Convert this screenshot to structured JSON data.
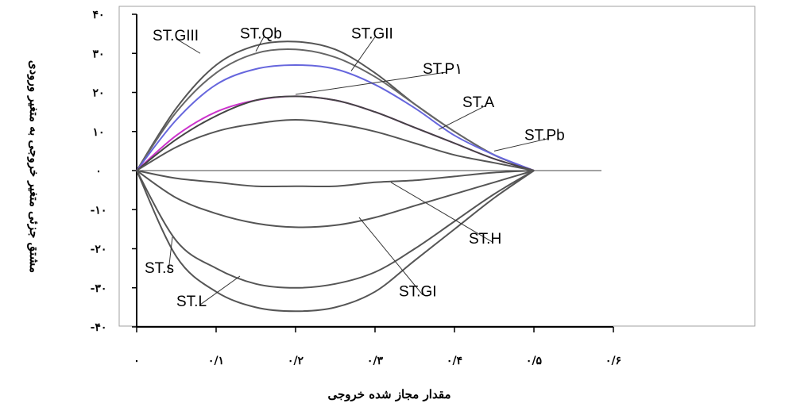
{
  "chart_data": {
    "type": "line",
    "xlabel": "مقدار مجاز شده خروجی",
    "ylabel": "مشتق جزئی متغیر خروجی به متغیر ورودی",
    "xlim": [
      0,
      0.6
    ],
    "ylim": [
      -40,
      40
    ],
    "x_ticks": [
      0,
      0.1,
      0.2,
      0.3,
      0.4,
      0.5,
      0.6
    ],
    "x_tick_labels": [
      "۰",
      "۰/۱",
      "۰/۲",
      "۰/۳",
      "۰/۴",
      "۰/۵",
      "۰/۶"
    ],
    "y_ticks": [
      40,
      30,
      20,
      10,
      0,
      -10,
      -20,
      -30,
      -40
    ],
    "y_tick_labels": [
      "۴۰",
      "۳۰",
      "۲۰",
      "۱۰",
      "۰",
      "-۱۰",
      "-۲۰",
      "-۳۰",
      "-۴۰"
    ],
    "grid": false,
    "x": [
      0,
      0.05,
      0.1,
      0.15,
      0.2,
      0.25,
      0.3,
      0.35,
      0.4,
      0.45,
      0.5
    ],
    "series": [
      {
        "name": "ST.GIII",
        "color": "#555555",
        "values": [
          0,
          16,
          27,
          32,
          33,
          31,
          25,
          17,
          10,
          4,
          0
        ]
      },
      {
        "name": "ST.Qb",
        "color": "#666666",
        "values": [
          0,
          15,
          25,
          30,
          31,
          29,
          24,
          17,
          10,
          4,
          0
        ]
      },
      {
        "name": "ST.GII",
        "color": "#6666dd",
        "values": [
          0,
          13,
          22,
          26,
          27,
          26,
          22,
          16,
          9,
          4,
          0
        ]
      },
      {
        "name": "ST.P۱",
        "color": "#cc33cc",
        "values": [
          0,
          9,
          15,
          18,
          19,
          18,
          15,
          11,
          7,
          3,
          0
        ]
      },
      {
        "name": "ST.A",
        "color": "#444444",
        "values": [
          0,
          8,
          14,
          18,
          19,
          18,
          15,
          11,
          7,
          3,
          0
        ]
      },
      {
        "name": "ST.Pb",
        "color": "#555555",
        "values": [
          0,
          6,
          10,
          12,
          13,
          12,
          10,
          7,
          4,
          2,
          0
        ]
      },
      {
        "name": "ST.H",
        "color": "#555555",
        "values": [
          0,
          -2,
          -3,
          -4,
          -4,
          -4,
          -3,
          -2.5,
          -1.5,
          -0.5,
          0
        ]
      },
      {
        "name": "ST.GI",
        "color": "#555555",
        "values": [
          0,
          -7,
          -11,
          -13.5,
          -14.5,
          -14,
          -12,
          -9,
          -6,
          -3,
          0
        ]
      },
      {
        "name": "ST.s",
        "color": "#555555",
        "values": [
          0,
          -18,
          -25,
          -29,
          -30,
          -29,
          -26,
          -20,
          -13,
          -6,
          0
        ]
      },
      {
        "name": "ST.L",
        "color": "#555555",
        "values": [
          0,
          -22,
          -31,
          -35,
          -36,
          -35,
          -31,
          -23,
          -15,
          -7,
          0
        ]
      }
    ],
    "annotations": [
      {
        "text": "ST.GIII",
        "x": 0.02,
        "y": 34.5,
        "ax": 0.08,
        "ay": 30
      },
      {
        "text": "ST.Qb",
        "x": 0.13,
        "y": 35,
        "ax": 0.15,
        "ay": 30.5
      },
      {
        "text": "ST.GII",
        "x": 0.27,
        "y": 35,
        "ax": 0.27,
        "ay": 25.5
      },
      {
        "text": "ST.P۱",
        "x": 0.36,
        "y": 26,
        "ax": 0.2,
        "ay": 19.5
      },
      {
        "text": "ST.A",
        "x": 0.41,
        "y": 17.5,
        "ax": 0.38,
        "ay": 10.5
      },
      {
        "text": "ST.Pb",
        "x": 0.488,
        "y": 9,
        "ax": 0.45,
        "ay": 5
      },
      {
        "text": "ST.H",
        "x": 0.418,
        "y": -17.5,
        "ax": 0.32,
        "ay": -3
      },
      {
        "text": "ST.GI",
        "x": 0.33,
        "y": -31,
        "ax": 0.28,
        "ay": -12
      },
      {
        "text": "ST.s",
        "x": 0.01,
        "y": -25,
        "ax": 0.045,
        "ay": -17
      },
      {
        "text": "ST.L",
        "x": 0.05,
        "y": -33.5,
        "ax": 0.13,
        "ay": -27
      }
    ]
  }
}
